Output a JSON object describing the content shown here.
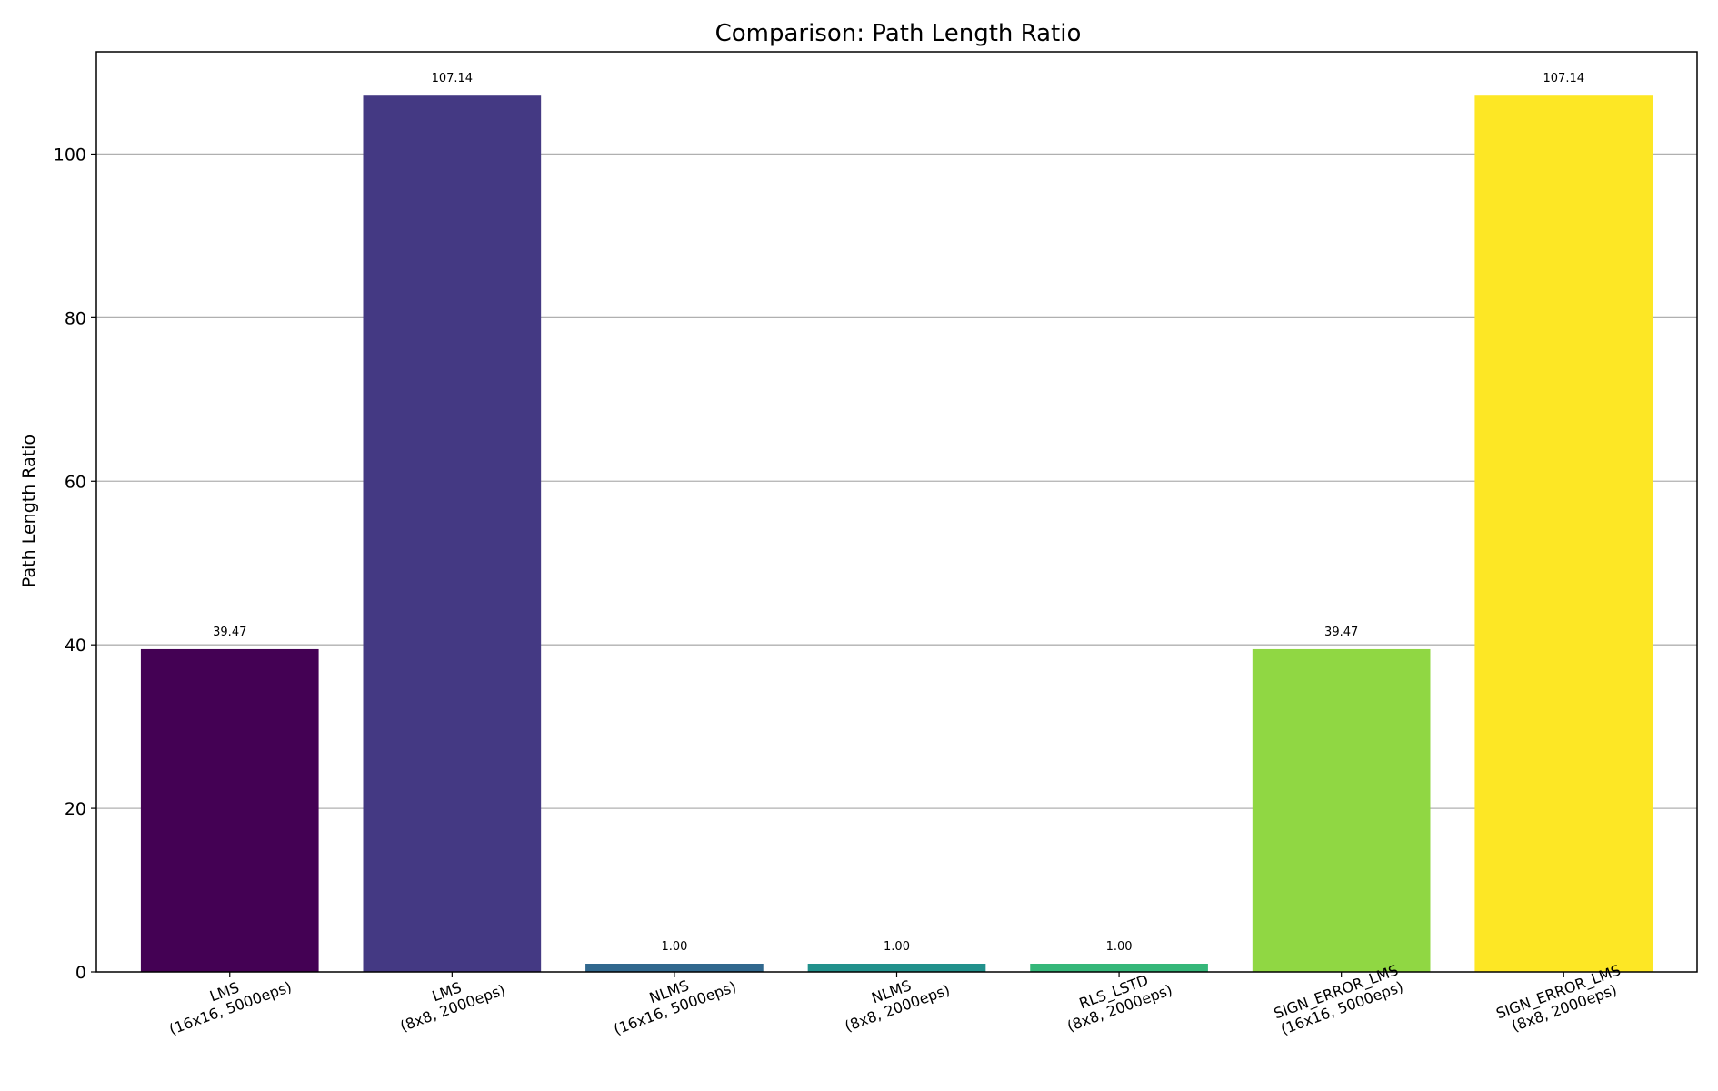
{
  "chart_data": {
    "type": "bar",
    "title": "Comparison: Path Length Ratio",
    "xlabel": "",
    "ylabel": "Path Length Ratio",
    "ylim": [
      0,
      112.5
    ],
    "yticks": [
      0,
      20,
      40,
      60,
      80,
      100
    ],
    "ytick_labels": [
      "0",
      "20",
      "40",
      "60",
      "80",
      "100"
    ],
    "grid": "horizontal",
    "categories": [
      [
        "LMS",
        "(16x16, 5000eps)"
      ],
      [
        "LMS",
        "(8x8, 2000eps)"
      ],
      [
        "NLMS",
        "(16x16, 5000eps)"
      ],
      [
        "NLMS",
        "(8x8, 2000eps)"
      ],
      [
        "RLS_LSTD",
        "(8x8, 2000eps)"
      ],
      [
        "SIGN_ERROR_LMS",
        "(16x16, 5000eps)"
      ],
      [
        "SIGN_ERROR_LMS",
        "(8x8, 2000eps)"
      ]
    ],
    "values": [
      39.47,
      107.14,
      1.0,
      1.0,
      1.0,
      39.47,
      107.14
    ],
    "value_labels": [
      "39.47",
      "107.14",
      "1.00",
      "1.00",
      "1.00",
      "39.47",
      "107.14"
    ],
    "colors": [
      "#440154",
      "#443983",
      "#31688e",
      "#21918c",
      "#35b779",
      "#90d743",
      "#fde725"
    ]
  }
}
